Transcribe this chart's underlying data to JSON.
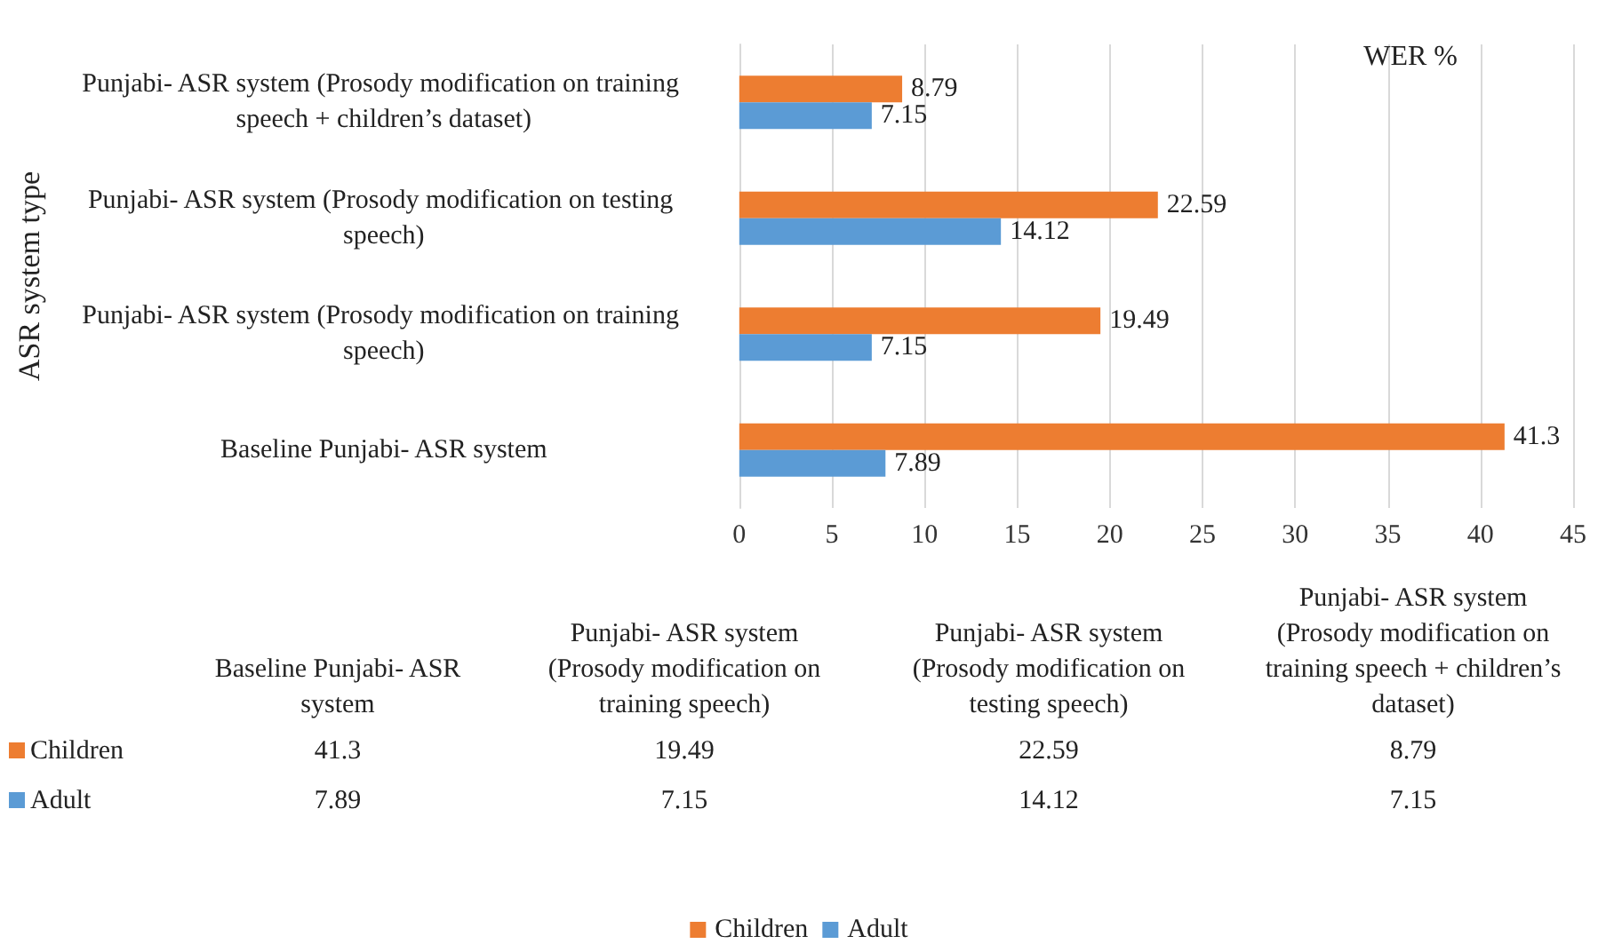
{
  "chart_data": {
    "type": "bar",
    "orientation": "horizontal",
    "xlabel": "WER %",
    "ylabel": "ASR system type",
    "categories": [
      "Punjabi- ASR system (Prosody modification on training speech + children’s dataset)",
      "Punjabi- ASR system (Prosody modification on testing speech)",
      "Punjabi- ASR system (Prosody modification on training speech)",
      "Baseline Punjabi- ASR system"
    ],
    "series": [
      {
        "name": "Children",
        "color": "#ed7d31",
        "values": [
          8.79,
          22.59,
          19.49,
          41.3
        ]
      },
      {
        "name": "Adult",
        "color": "#5b9bd5",
        "values": [
          7.15,
          14.12,
          7.15,
          7.89
        ]
      }
    ],
    "annotations": [
      "41.3",
      "19.49",
      "22.59",
      "8.79",
      "7.89",
      "7.15",
      "14.12",
      "7.15"
    ],
    "xlim": [
      0,
      45
    ],
    "xticks": [
      0,
      5,
      10,
      15,
      20,
      25,
      30,
      35,
      40,
      45
    ],
    "grid": "x",
    "legend": "bottom",
    "data_labels": true
  }
}
